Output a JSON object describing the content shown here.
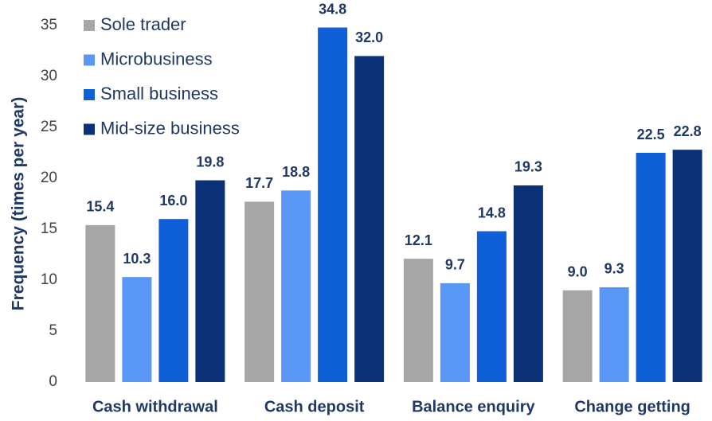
{
  "chart_data": {
    "type": "bar",
    "ylabel": "Frequency (times per year)",
    "categories": [
      "Cash withdrawal",
      "Cash deposit",
      "Balance enquiry",
      "Change getting"
    ],
    "series": [
      {
        "name": "Sole trader",
        "color": "#a6a6a6",
        "values": [
          15.4,
          17.7,
          12.1,
          9.0
        ],
        "value_labels": [
          "15.4",
          "17.7",
          "12.1",
          "9.0"
        ]
      },
      {
        "name": "Microbusiness",
        "color": "#5897f6",
        "values": [
          10.3,
          18.8,
          9.7,
          9.3
        ],
        "value_labels": [
          "10.3",
          "18.8",
          "9.7",
          "9.3"
        ]
      },
      {
        "name": "Small business",
        "color": "#0f5fd9",
        "values": [
          16.0,
          34.8,
          14.8,
          22.5
        ],
        "value_labels": [
          "16.0",
          "34.8",
          "14.8",
          "22.5"
        ]
      },
      {
        "name": "Mid-size business",
        "color": "#0b3278",
        "values": [
          19.8,
          32.0,
          19.3,
          22.8
        ],
        "value_labels": [
          "19.8",
          "32.0",
          "19.3",
          "22.8"
        ]
      }
    ],
    "ylim": [
      0,
      35
    ],
    "yticks": [
      0,
      5,
      10,
      15,
      20,
      25,
      30,
      35
    ],
    "legend": "top-left",
    "grid": false
  }
}
